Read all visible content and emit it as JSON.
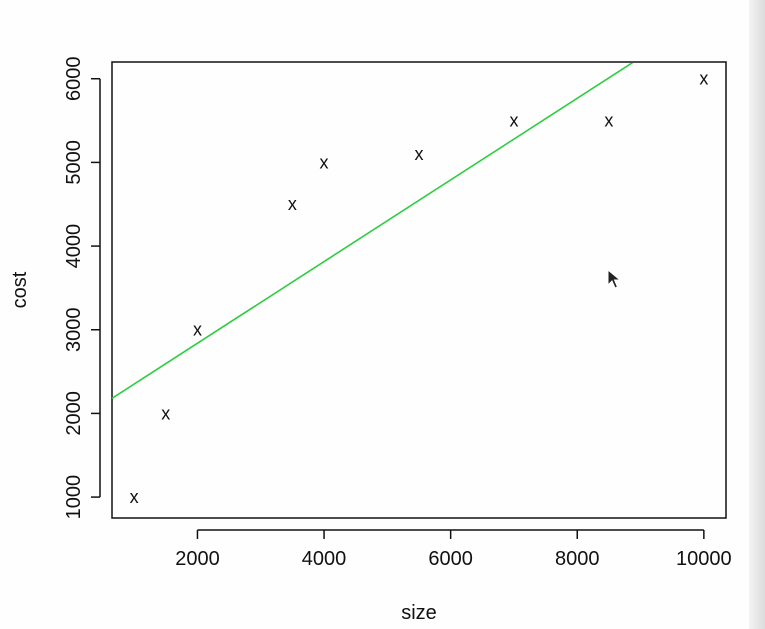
{
  "chart_data": {
    "type": "scatter",
    "xlabel": "size",
    "ylabel": "cost",
    "xlim": [
      650,
      10350
    ],
    "ylim": [
      750,
      6200
    ],
    "x_ticks": [
      2000,
      4000,
      6000,
      8000,
      10000
    ],
    "x_tick_labels": [
      "2000",
      "4000",
      "6000",
      "8000",
      "10000"
    ],
    "y_ticks": [
      1000,
      2000,
      3000,
      4000,
      5000,
      6000
    ],
    "y_tick_labels": [
      "1000",
      "2000",
      "3000",
      "4000",
      "5000",
      "6000"
    ],
    "marker": "x",
    "points": [
      {
        "x": 1000,
        "y": 1000
      },
      {
        "x": 1500,
        "y": 2000
      },
      {
        "x": 2000,
        "y": 3000
      },
      {
        "x": 3500,
        "y": 4500
      },
      {
        "x": 4000,
        "y": 5000
      },
      {
        "x": 5500,
        "y": 5100
      },
      {
        "x": 7000,
        "y": 5500
      },
      {
        "x": 8500,
        "y": 5500
      },
      {
        "x": 10000,
        "y": 6000
      }
    ],
    "fit_line": {
      "x": [
        650,
        8950
      ],
      "y": [
        2180,
        6230
      ],
      "color": "#2ecc40"
    },
    "colors": {
      "points": "#111111",
      "line": "#2ecc40",
      "axes": "#111111"
    },
    "grid": false,
    "legend": "none"
  },
  "cursor": {
    "icon": "mouse-pointer-icon"
  }
}
